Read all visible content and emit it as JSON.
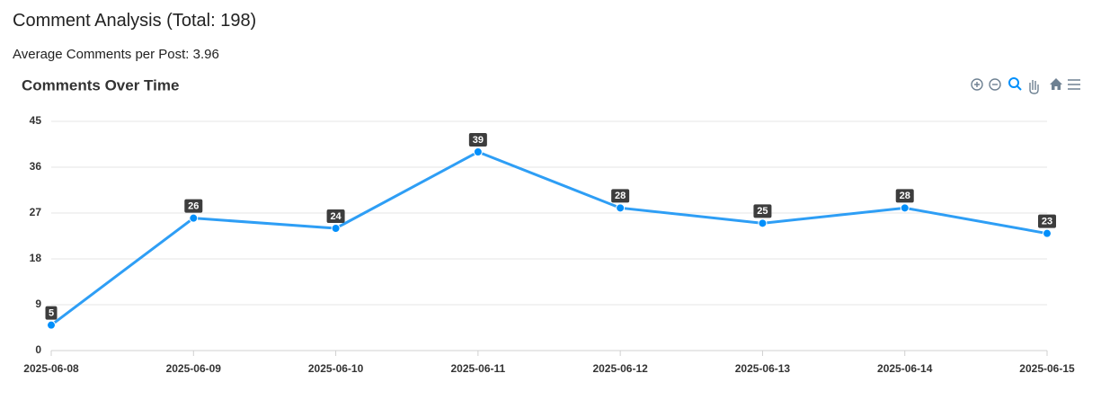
{
  "header": {
    "title": "Comment Analysis (Total: 198)",
    "subtitle": "Average Comments per Post: 3.96"
  },
  "chart_data": {
    "type": "line",
    "title": "Comments Over Time",
    "categories": [
      "2025-06-08",
      "2025-06-09",
      "2025-06-10",
      "2025-06-11",
      "2025-06-12",
      "2025-06-13",
      "2025-06-14",
      "2025-06-15"
    ],
    "values": [
      5,
      26,
      24,
      39,
      28,
      25,
      28,
      23
    ],
    "color": "#2e9ef5",
    "ylim": [
      0,
      45
    ],
    "yticks": [
      0,
      9,
      18,
      27,
      36,
      45
    ],
    "grid": true,
    "data_labels": true
  }
}
